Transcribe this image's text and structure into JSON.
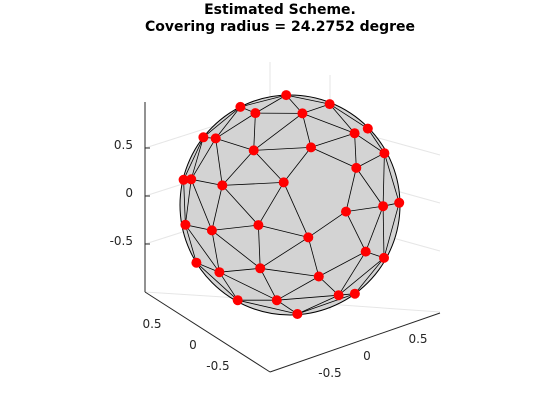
{
  "chart_data": {
    "type": "scatter",
    "title_lines": [
      "Estimated Scheme.",
      "Covering radius = 24.2752 degree"
    ],
    "xlabel": "",
    "ylabel": "",
    "zlabel": "",
    "view": "3d",
    "x_ticks": [
      "0.5",
      "0",
      "-0.5"
    ],
    "y_ticks": [
      "0.5",
      "0",
      "-0.5"
    ],
    "z_ticks": [
      "0.5",
      "0",
      "-0.5"
    ],
    "grid": true,
    "points_count": 60,
    "marker_color": "#ff0000",
    "surface_color": "#d3d3d3",
    "edge_color": "#000000"
  }
}
